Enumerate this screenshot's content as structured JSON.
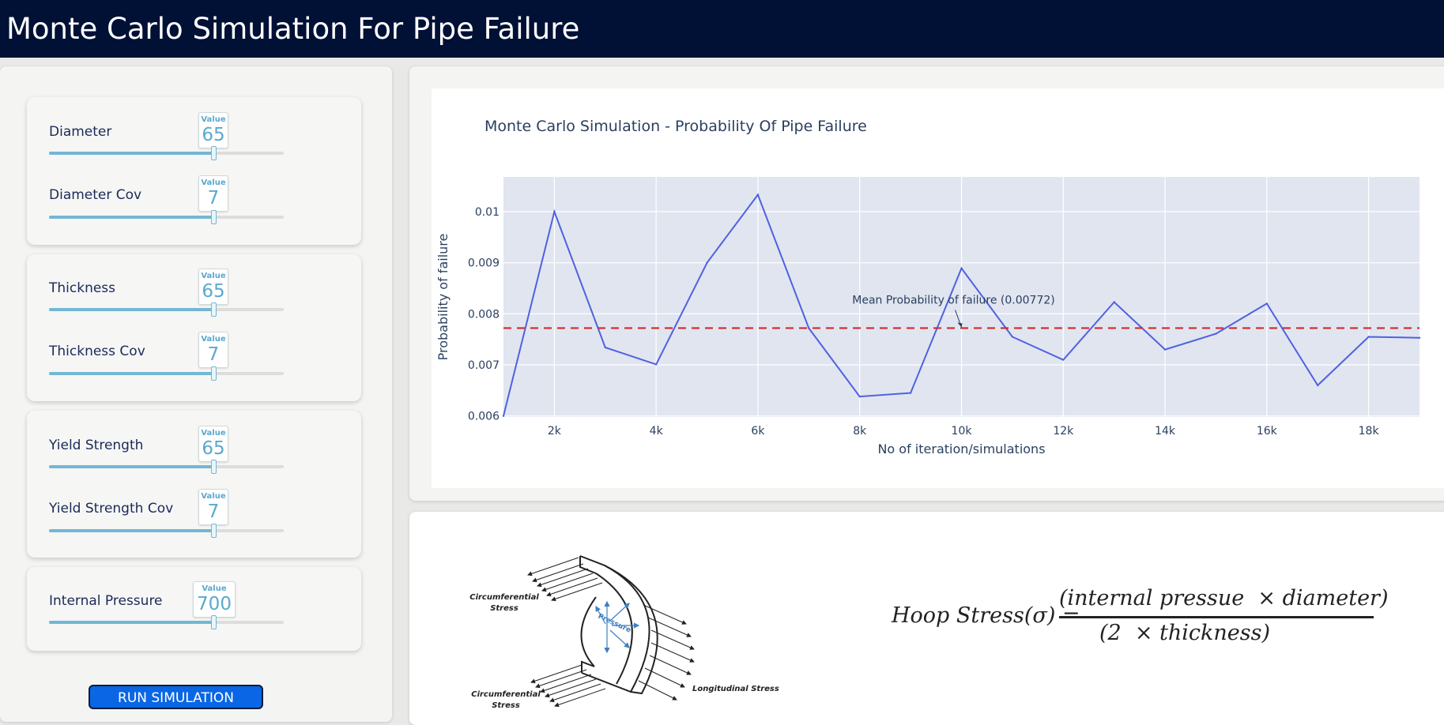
{
  "header": {
    "title": "Monte Carlo Simulation For Pipe Failure"
  },
  "sidebar": {
    "value_label": "Value",
    "sliders": [
      {
        "label": "Diameter",
        "value": "65",
        "fraction": 0.7
      },
      {
        "label": "Diameter Cov",
        "value": "7",
        "fraction": 0.7
      },
      {
        "label": "Thickness",
        "value": "65",
        "fraction": 0.7
      },
      {
        "label": "Thickness Cov",
        "value": "7",
        "fraction": 0.7
      },
      {
        "label": "Yield Strength",
        "value": "65",
        "fraction": 0.7
      },
      {
        "label": "Yield Strength Cov",
        "value": "7",
        "fraction": 0.7
      },
      {
        "label": "Internal Pressure",
        "value": "700",
        "fraction": 0.7
      }
    ],
    "run_button": "RUN SIMULATION"
  },
  "chart_data": {
    "type": "line",
    "title": "Monte Carlo Simulation - Probability Of Pipe Failure",
    "xlabel": "No of iteration/simulations",
    "ylabel": "Probability of failure",
    "x_ticks": [
      "2k",
      "4k",
      "6k",
      "8k",
      "10k",
      "12k",
      "14k",
      "16k",
      "18k"
    ],
    "y_ticks": [
      "0.006",
      "0.007",
      "0.008",
      "0.009",
      "0.01"
    ],
    "xlim": [
      1000,
      19000
    ],
    "ylim": [
      0.00598,
      0.01068
    ],
    "grid": true,
    "series": [
      {
        "x": [
          1000,
          2000,
          3000,
          4000,
          5000,
          6000,
          7000,
          8000,
          9000,
          10000,
          11000,
          12000,
          13000,
          14000,
          15000,
          16000,
          17000,
          18000,
          19000
        ],
        "y": [
          0.006,
          0.01,
          0.00734,
          0.00701,
          0.009,
          0.01033,
          0.00772,
          0.00638,
          0.00645,
          0.00889,
          0.00755,
          0.0071,
          0.00823,
          0.0073,
          0.00761,
          0.0082,
          0.0066,
          0.00755,
          0.00753
        ],
        "color": "#5061e0"
      }
    ],
    "mean_line": {
      "value": 0.00772,
      "color": "#d62728"
    },
    "annotation": "Mean Probability of failure (0.00772)"
  },
  "diagram": {
    "labels": {
      "circ_top_1": "Circumferential",
      "circ_top_2": "Stress",
      "circ_bot_1": "Circumferential",
      "circ_bot_2": "Stress",
      "pressure": "Pressure",
      "longitudinal": "Longitudinal Stress"
    }
  },
  "formula": {
    "lhs": "Hoop Stress(σ) =",
    "numerator": "(internal pressue  × diameter)",
    "denominator": "(2  × thickness)"
  }
}
